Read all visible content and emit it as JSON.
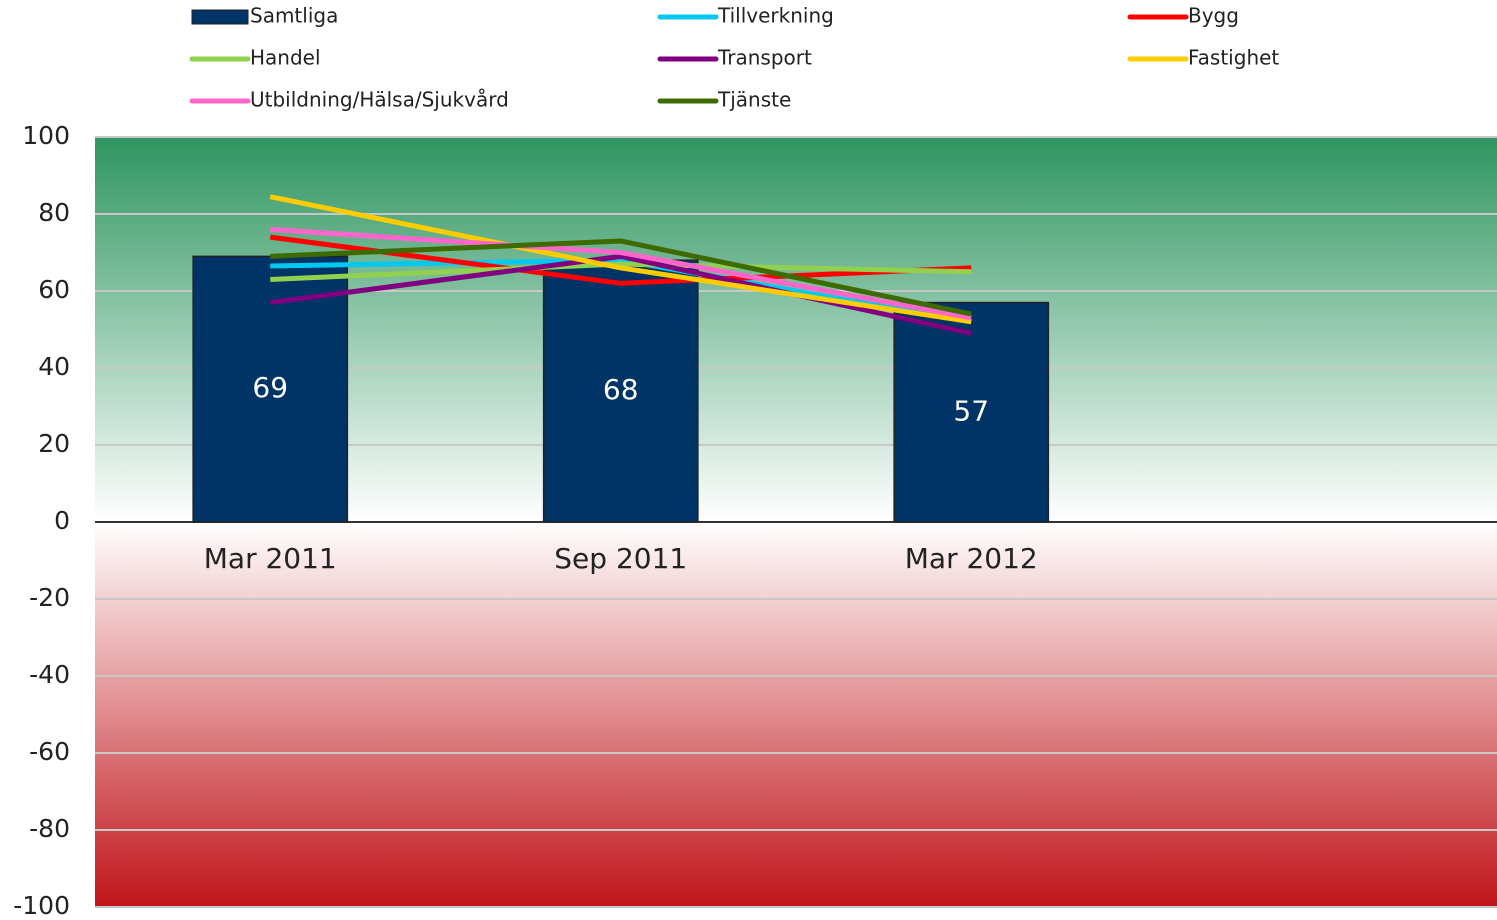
{
  "chart_data": {
    "type": "combo",
    "categories": [
      "Mar 2011",
      "Sep 2011",
      "Mar 2012",
      null
    ],
    "series": [
      {
        "name": "Samtliga",
        "type": "bar",
        "color": "#003366",
        "values": [
          69,
          68,
          57,
          null
        ]
      },
      {
        "name": "Tillverkning",
        "type": "line",
        "color": "#00c8f0",
        "values": [
          66.5,
          68,
          52,
          null
        ]
      },
      {
        "name": "Bygg",
        "type": "line",
        "color": "#ff0000",
        "values": [
          74,
          62,
          66,
          null
        ]
      },
      {
        "name": "Handel",
        "type": "line",
        "color": "#92d050",
        "values": [
          63,
          67,
          65,
          null
        ]
      },
      {
        "name": "Transport",
        "type": "line",
        "color": "#800080",
        "values": [
          57,
          69,
          49,
          null
        ]
      },
      {
        "name": "Fastighet",
        "type": "line",
        "color": "#ffcc00",
        "values": [
          84.5,
          66,
          52,
          null
        ]
      },
      {
        "name": "Utbildning/Hälsa/Sjukvård",
        "type": "line",
        "color": "#ff66cc",
        "values": [
          76,
          70,
          53,
          null
        ]
      },
      {
        "name": "Tjänste",
        "type": "line",
        "color": "#3d6b00",
        "values": [
          69,
          73,
          54,
          null
        ]
      }
    ],
    "ylim": [
      -100,
      100
    ],
    "yticks": [
      -100,
      -80,
      -60,
      -40,
      -20,
      0,
      20,
      40,
      60,
      80,
      100
    ],
    "grid": true,
    "legend": "top"
  }
}
